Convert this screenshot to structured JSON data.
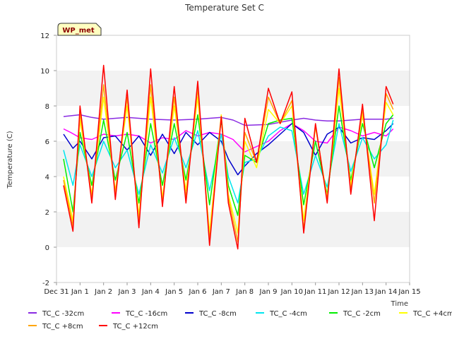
{
  "chart_data": {
    "type": "line",
    "title": "Temperature Set C",
    "xlabel": "Time",
    "ylabel": "Temperature (C)",
    "ylim": [
      -2,
      12
    ],
    "yticks": [
      -2,
      0,
      2,
      4,
      6,
      8,
      10,
      12
    ],
    "xlim": [
      0,
      15
    ],
    "xticks": [
      "Dec 31",
      "Jan 1",
      "Jan 2",
      "Jan 3",
      "Jan 4",
      "Jan 5",
      "Jan 6",
      "Jan 7",
      "Jan 8",
      "Jan 9",
      "Jan 10",
      "Jan 11",
      "Jan 12",
      "Jan 13",
      "Jan 14",
      "Jan 15"
    ],
    "grid": "horizontal bands",
    "legend_position": "bottom",
    "badge": "WP_met",
    "series": [
      {
        "name": "TC_C -32cm",
        "color": "#8a2be2",
        "x": [
          0.3,
          1,
          1.5,
          2,
          2.5,
          3,
          4,
          5,
          6,
          7,
          7.5,
          8,
          9,
          10,
          10.5,
          11,
          11.5,
          12,
          13,
          14,
          14.3
        ],
        "y": [
          7.4,
          7.5,
          7.35,
          7.25,
          7.3,
          7.35,
          7.25,
          7.2,
          7.25,
          7.35,
          7.2,
          6.9,
          6.95,
          7.2,
          7.3,
          7.2,
          7.15,
          7.15,
          7.25,
          7.25,
          7.3
        ]
      },
      {
        "name": "TC_C -16cm",
        "color": "#ff00ff",
        "x": [
          0.3,
          0.6,
          1,
          1.5,
          2,
          2.5,
          3,
          3.5,
          4,
          4.5,
          5,
          5.5,
          6,
          6.5,
          7,
          7.5,
          8,
          8.5,
          9,
          9.5,
          10,
          10.5,
          11,
          11.5,
          12,
          12.5,
          13,
          13.5,
          14,
          14.3
        ],
        "y": [
          6.7,
          6.5,
          6.2,
          6.1,
          6.4,
          6.3,
          6.4,
          6.3,
          5.9,
          6.2,
          6.1,
          6.6,
          6.3,
          6.5,
          6.4,
          6.1,
          5.4,
          5.7,
          6.0,
          6.6,
          7.0,
          6.6,
          6.0,
          5.9,
          6.8,
          6.6,
          6.3,
          6.5,
          6.3,
          6.7
        ]
      },
      {
        "name": "TC_C -8cm",
        "color": "#0000cc",
        "x": [
          0.3,
          0.7,
          1,
          1.5,
          2,
          2.5,
          3,
          3.5,
          4,
          4.5,
          5,
          5.5,
          6,
          6.5,
          7,
          7.3,
          7.7,
          8,
          8.5,
          9,
          9.5,
          10,
          10.5,
          11,
          11.5,
          12,
          12.5,
          13,
          13.5,
          14,
          14.3
        ],
        "y": [
          6.4,
          5.6,
          6.0,
          5.0,
          6.2,
          6.3,
          5.5,
          6.3,
          5.2,
          6.4,
          5.3,
          6.5,
          5.8,
          6.5,
          6.0,
          5.0,
          4.1,
          4.6,
          5.3,
          5.8,
          6.4,
          7.0,
          6.5,
          5.2,
          6.4,
          6.8,
          5.9,
          6.2,
          6.1,
          6.6,
          7.0
        ]
      },
      {
        "name": "TC_C -4cm",
        "color": "#00e5ee",
        "x": [
          0.3,
          0.7,
          1,
          1.5,
          2,
          2.5,
          3,
          3.5,
          4,
          4.5,
          5,
          5.5,
          6,
          6.5,
          7,
          7.3,
          7.7,
          8,
          8.5,
          9,
          9.5,
          10,
          10.5,
          11,
          11.5,
          12,
          12.5,
          13,
          13.5,
          14,
          14.3
        ],
        "y": [
          5.5,
          3.5,
          5.8,
          4.0,
          6.0,
          4.5,
          5.5,
          3.0,
          5.8,
          4.2,
          6.2,
          4.5,
          6.6,
          3.2,
          6.4,
          4.0,
          2.5,
          4.8,
          5.0,
          6.3,
          6.8,
          6.6,
          3.0,
          5.2,
          3.4,
          7.0,
          4.3,
          6.2,
          5.0,
          5.8,
          7.2
        ]
      },
      {
        "name": "TC_C -2cm",
        "color": "#00ee00",
        "x": [
          0.3,
          0.7,
          1,
          1.5,
          2,
          2.5,
          3,
          3.5,
          4,
          4.5,
          5,
          5.5,
          6,
          6.5,
          7,
          7.3,
          7.7,
          8,
          8.5,
          9,
          9.5,
          10,
          10.5,
          11,
          11.5,
          12,
          12.5,
          13,
          13.5,
          14,
          14.3
        ],
        "y": [
          5.0,
          2.0,
          6.5,
          3.5,
          7.2,
          3.8,
          6.5,
          2.5,
          7.0,
          3.5,
          7.0,
          3.8,
          7.5,
          2.4,
          7.2,
          3.5,
          1.8,
          5.2,
          4.8,
          7.0,
          7.2,
          7.3,
          2.4,
          6.0,
          3.0,
          8.0,
          3.8,
          7.0,
          4.5,
          7.0,
          7.5
        ]
      },
      {
        "name": "TC_C +4cm",
        "color": "#ffff00",
        "x": [
          0.3,
          0.7,
          1,
          1.5,
          2,
          2.5,
          3,
          3.5,
          4,
          4.5,
          5,
          5.5,
          6,
          6.5,
          7,
          7.3,
          7.7,
          8,
          8.5,
          9,
          9.5,
          10,
          10.5,
          11,
          11.5,
          12,
          12.5,
          13,
          13.5,
          14,
          14.3
        ],
        "y": [
          4.0,
          1.5,
          7.2,
          3.0,
          8.5,
          3.2,
          8.0,
          1.8,
          8.5,
          2.8,
          8.0,
          3.2,
          8.5,
          0.8,
          7.5,
          3.0,
          0.8,
          6.0,
          4.5,
          7.8,
          7.0,
          8.0,
          1.5,
          6.8,
          2.8,
          9.0,
          3.5,
          7.5,
          3.0,
          8.2,
          7.5
        ]
      },
      {
        "name": "TC_C +8cm",
        "color": "#ffa500",
        "x": [
          0.3,
          0.7,
          1,
          1.5,
          2,
          2.5,
          3,
          3.5,
          4,
          4.5,
          5,
          5.5,
          6,
          6.5,
          7,
          7.3,
          7.7,
          8,
          8.5,
          9,
          9.5,
          10,
          10.5,
          11,
          11.5,
          12,
          12.5,
          13,
          13.5,
          14,
          14.3
        ],
        "y": [
          3.8,
          1.2,
          7.6,
          2.8,
          9.2,
          3.0,
          8.5,
          1.4,
          9.2,
          2.5,
          8.5,
          2.8,
          9.0,
          0.4,
          7.4,
          2.8,
          0.3,
          6.5,
          4.8,
          8.5,
          7.0,
          8.3,
          1.0,
          6.9,
          2.7,
          9.6,
          3.2,
          7.8,
          2.5,
          8.7,
          7.8
        ]
      },
      {
        "name": "TC_C +12cm",
        "color": "#ff0000",
        "x": [
          0.3,
          0.7,
          1,
          1.5,
          2,
          2.5,
          3,
          3.5,
          4,
          4.5,
          5,
          5.5,
          6,
          6.5,
          7,
          7.3,
          7.7,
          8,
          8.5,
          9,
          9.5,
          10,
          10.5,
          11,
          11.5,
          12,
          12.5,
          13,
          13.5,
          14,
          14.3
        ],
        "y": [
          3.5,
          0.9,
          8.0,
          2.5,
          10.3,
          2.7,
          8.9,
          1.1,
          10.1,
          2.3,
          9.1,
          2.5,
          9.4,
          0.1,
          7.4,
          2.5,
          -0.1,
          7.3,
          4.8,
          9.0,
          7.0,
          8.8,
          0.8,
          7.0,
          2.5,
          10.1,
          3.0,
          8.1,
          1.5,
          9.1,
          8.1
        ]
      }
    ]
  }
}
